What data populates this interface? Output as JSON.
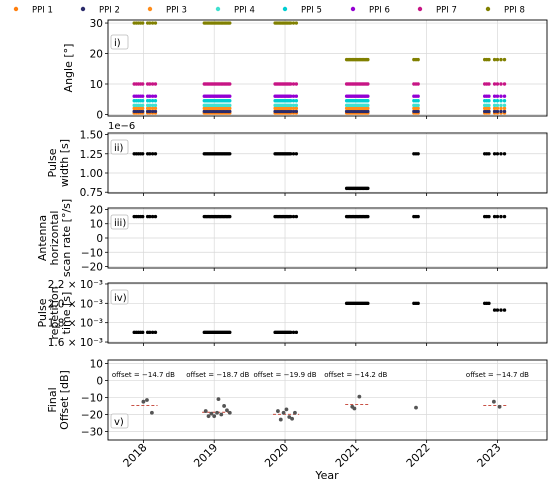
{
  "figure": {
    "xlabel": "Year",
    "x_ticks": [
      2018,
      2019,
      2020,
      2021,
      2022,
      2023
    ],
    "x_tick_labels": [
      "2018",
      "2019",
      "2020",
      "2021",
      "2022",
      "2023"
    ],
    "xlim": [
      2017.5,
      2023.7
    ]
  },
  "legend": {
    "placement": "top",
    "entries": [
      {
        "label": "PPI 1",
        "color": "#ff7f0e"
      },
      {
        "label": "PPI 2",
        "color": "#2b2b6b"
      },
      {
        "label": "PPI 3",
        "color": "#ff8c1a"
      },
      {
        "label": "PPI 4",
        "color": "#40e0d0"
      },
      {
        "label": "PPI 5",
        "color": "#00ced1"
      },
      {
        "label": "PPI 6",
        "color": "#9400d3"
      },
      {
        "label": "PPI 7",
        "color": "#c71585"
      },
      {
        "label": "PPI 8",
        "color": "#808000"
      }
    ]
  },
  "chart_data": [
    {
      "type": "scatter",
      "panel_label": "i)",
      "ylabel": "Angle [°]",
      "ylim": [
        -0.5,
        31
      ],
      "y_ticks": [
        0,
        10,
        20,
        30
      ],
      "y_tick_labels": [
        "0",
        "10",
        "20",
        "30"
      ],
      "grid": true,
      "campaign_dates": [
        [
          2017.87,
          2017.9,
          2017.93,
          2017.96,
          2017.99,
          2018.06,
          2018.09,
          2018.13,
          2018.17
        ],
        [
          2018.86,
          2018.88,
          2018.9,
          2018.92,
          2018.94,
          2018.96,
          2018.98,
          2019.0,
          2019.02,
          2019.04,
          2019.06,
          2019.08,
          2019.1,
          2019.12,
          2019.14,
          2019.16,
          2019.18,
          2019.2,
          2019.22
        ],
        [
          2019.86,
          2019.88,
          2019.9,
          2019.92,
          2019.94,
          2019.96,
          2019.98,
          2020.0,
          2020.02,
          2020.04,
          2020.06,
          2020.08,
          2020.12,
          2020.16
        ],
        [
          2020.87,
          2020.89,
          2020.91,
          2020.93,
          2020.95,
          2020.97,
          2020.99,
          2021.01,
          2021.03,
          2021.05,
          2021.07,
          2021.09,
          2021.11,
          2021.13,
          2021.15,
          2021.17
        ],
        [
          2021.82,
          2021.85,
          2021.88
        ],
        [
          2022.82,
          2022.85,
          2022.88,
          2022.96,
          2023.0,
          2023.05,
          2023.1
        ]
      ],
      "series": [
        {
          "name": "PPI 1",
          "color": "#ff7f0e",
          "y": 0.5
        },
        {
          "name": "PPI 2",
          "color": "#2b2b6b",
          "y": 1.0
        },
        {
          "name": "PPI 3",
          "color": "#ff8c1a",
          "y": 2.0
        },
        {
          "name": "PPI 4",
          "color": "#40e0d0",
          "y": 3.0
        },
        {
          "name": "PPI 5",
          "color": "#00ced1",
          "y": 4.5
        },
        {
          "name": "PPI 6",
          "color": "#9400d3",
          "y": 6.0
        },
        {
          "name": "PPI 7",
          "color": "#c71585",
          "y": 10.0
        },
        {
          "name": "PPI 8",
          "color": "#808000",
          "y": 30.0,
          "y_by_campaign": [
            30,
            30,
            30,
            18,
            18,
            18
          ]
        }
      ]
    },
    {
      "type": "scatter",
      "panel_label": "ii)",
      "ylabel": "Pulse width [s]",
      "scale_factor_label": "1e−6",
      "ylim": [
        0.74,
        1.52
      ],
      "y_ticks": [
        0.75,
        1.0,
        1.25,
        1.5
      ],
      "y_tick_labels": [
        "0.75",
        "1.00",
        "1.25",
        "1.50"
      ],
      "grid": true,
      "color": "#000000",
      "y_by_campaign": [
        1.25,
        1.25,
        1.25,
        0.8,
        1.25,
        1.25
      ]
    },
    {
      "type": "scatter",
      "panel_label": "iii)",
      "ylabel": "Antenna horizontal scan rate [°/s]",
      "ylim": [
        -21,
        21
      ],
      "y_ticks": [
        -20,
        -10,
        0,
        10,
        20
      ],
      "y_tick_labels": [
        "−20",
        "−10",
        "0",
        "10",
        "20"
      ],
      "grid": true,
      "color": "#000000",
      "y_by_campaign": [
        15,
        15,
        15,
        15,
        15,
        15
      ]
    },
    {
      "type": "scatter",
      "panel_label": "iv)",
      "ylabel": "Pulse repetition time [s]",
      "ylim": [
        0.00159,
        0.00221
      ],
      "y_ticks": [
        0.0016,
        0.0018,
        0.002,
        0.0022
      ],
      "y_tick_labels": [
        "1.6 × 10⁻³",
        "1.8 × 10⁻³",
        "2.0 × 10⁻³",
        "2.2 × 10⁻³"
      ],
      "grid": true,
      "color": "#000000",
      "points_override_last": {
        "x": [
          2022.82,
          2022.85,
          2022.88,
          2022.96,
          2023.0,
          2023.05,
          2023.1
        ],
        "y": [
          0.002,
          0.002,
          0.002,
          0.00193,
          0.00193,
          0.00193,
          0.00193
        ]
      },
      "y_by_campaign": [
        0.0017,
        0.0017,
        0.0017,
        0.002,
        0.002,
        0.002
      ]
    },
    {
      "type": "scatter",
      "panel_label": "v)",
      "ylabel": "Final Offset [dB]",
      "ylim": [
        -35,
        12
      ],
      "y_ticks": [
        -30,
        -20,
        -10,
        0,
        10
      ],
      "y_tick_labels": [
        "−30",
        "−20",
        "−10",
        "0",
        "10"
      ],
      "grid": true,
      "color": "#555555",
      "mean_line_color": "#c0392b",
      "points": [
        {
          "x": 2018.0,
          "y": -12.5
        },
        {
          "x": 2018.05,
          "y": -11.5
        },
        {
          "x": 2018.12,
          "y": -19.0
        },
        {
          "x": 2018.88,
          "y": -18.0
        },
        {
          "x": 2018.92,
          "y": -21.0
        },
        {
          "x": 2018.96,
          "y": -19.5
        },
        {
          "x": 2019.0,
          "y": -21.0
        },
        {
          "x": 2019.04,
          "y": -19.0
        },
        {
          "x": 2019.06,
          "y": -11.0
        },
        {
          "x": 2019.1,
          "y": -20.0
        },
        {
          "x": 2019.14,
          "y": -15.0
        },
        {
          "x": 2019.18,
          "y": -17.5
        },
        {
          "x": 2019.22,
          "y": -19.0
        },
        {
          "x": 2019.9,
          "y": -18.0
        },
        {
          "x": 2019.94,
          "y": -23.0
        },
        {
          "x": 2019.98,
          "y": -19.0
        },
        {
          "x": 2020.02,
          "y": -17.0
        },
        {
          "x": 2020.06,
          "y": -21.5
        },
        {
          "x": 2020.1,
          "y": -22.5
        },
        {
          "x": 2020.14,
          "y": -19.0
        },
        {
          "x": 2020.95,
          "y": -15.5
        },
        {
          "x": 2020.98,
          "y": -16.5
        },
        {
          "x": 2021.05,
          "y": -9.5
        },
        {
          "x": 2021.85,
          "y": -16.0
        },
        {
          "x": 2022.95,
          "y": -12.5
        },
        {
          "x": 2023.03,
          "y": -15.5
        }
      ],
      "means": [
        {
          "x_range": [
            2017.83,
            2018.2
          ],
          "y": -14.7,
          "label": "offset = −14.7 dB",
          "label_x": 2018.0
        },
        {
          "x_range": [
            2018.83,
            2019.25
          ],
          "y": -18.7,
          "label": "offset = −18.7 dB",
          "label_x": 2019.05
        },
        {
          "x_range": [
            2019.83,
            2020.2
          ],
          "y": -19.9,
          "label": "offset = −19.9 dB",
          "label_x": 2020.0
        },
        {
          "x_range": [
            2020.85,
            2021.2
          ],
          "y": -14.2,
          "label": "offset = −14.2 dB",
          "label_x": 2021.0
        },
        {
          "x_range": [
            2022.8,
            2023.15
          ],
          "y": -14.7,
          "label": "offset = −14.7 dB",
          "label_x": 2023.0
        }
      ]
    }
  ]
}
